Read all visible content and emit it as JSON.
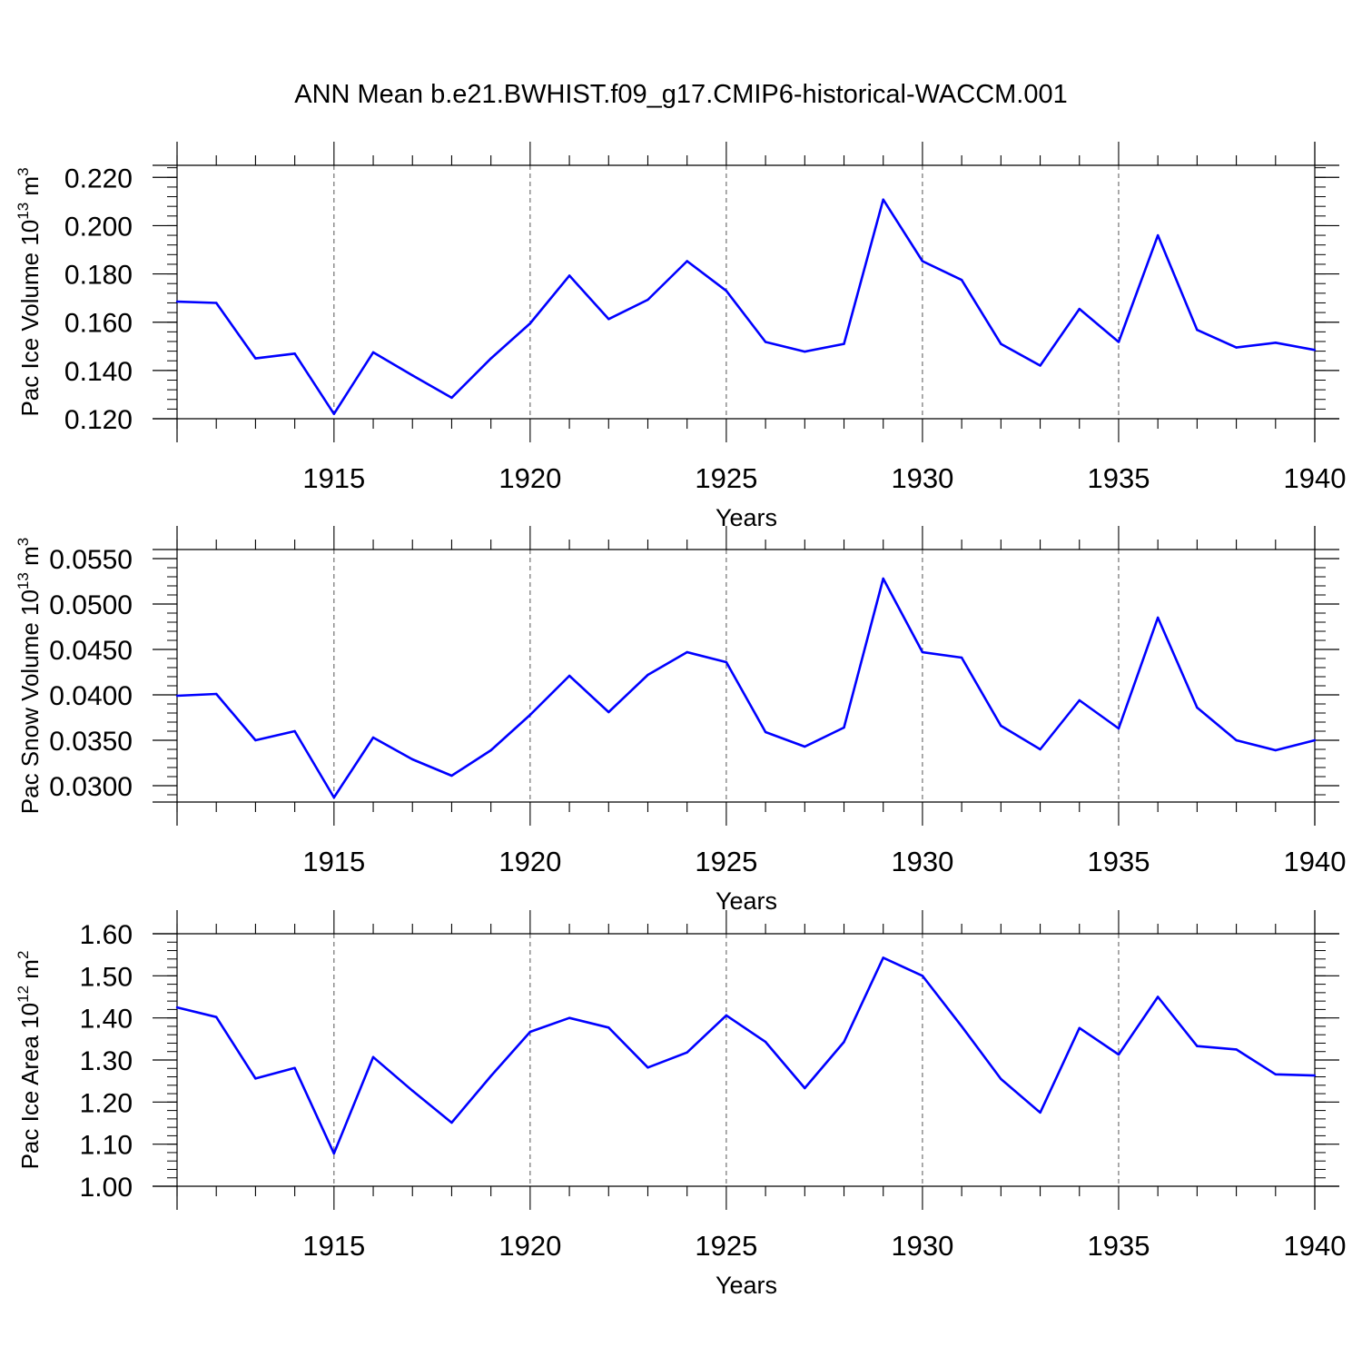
{
  "title": "ANN Mean b.e21.BWHIST.f09_g17.CMIP6-historical-WACCM.001",
  "chart_data": [
    {
      "type": "line",
      "title": "ANN Mean b.e21.BWHIST.f09_g17.CMIP6-historical-WACCM.001",
      "xlabel": "Years",
      "ylabel": "Pac Ice Volume 10",
      "ylabel_exp": "13",
      "ylabel_unit": " m",
      "ylabel_unit_exp": "3",
      "xlim": [
        1911,
        1940
      ],
      "ylim": [
        0.12,
        0.225
      ],
      "x_ticks": [
        1915,
        1920,
        1925,
        1930,
        1935,
        1940
      ],
      "x_tick_labels": [
        "1915",
        "1920",
        "1925",
        "1930",
        "1935",
        "1940"
      ],
      "y_ticks": [
        0.12,
        0.14,
        0.16,
        0.18,
        0.2,
        0.22
      ],
      "y_tick_labels": [
        "0.120",
        "0.140",
        "0.160",
        "0.180",
        "0.200",
        "0.220"
      ],
      "y_minor_step": 0.004,
      "grid": "vertical dashed at major x ticks",
      "line_color": "#0000ff",
      "x": [
        1911,
        1912,
        1913,
        1914,
        1915,
        1916,
        1917,
        1918,
        1919,
        1920,
        1921,
        1922,
        1923,
        1924,
        1925,
        1926,
        1927,
        1928,
        1929,
        1930,
        1931,
        1932,
        1933,
        1934,
        1935,
        1936,
        1937,
        1938,
        1939,
        1940
      ],
      "values": [
        0.1685,
        0.168,
        0.145,
        0.147,
        0.122,
        0.1475,
        0.138,
        0.1287,
        0.145,
        0.1595,
        0.1793,
        0.1613,
        0.1693,
        0.1853,
        0.173,
        0.1518,
        0.1478,
        0.151,
        0.2108,
        0.1853,
        0.1775,
        0.151,
        0.142,
        0.1655,
        0.1518,
        0.196,
        0.1568,
        0.1495,
        0.1515,
        0.1485
      ]
    },
    {
      "type": "line",
      "xlabel": "Years",
      "ylabel": "Pac Snow Volume 10",
      "ylabel_exp": "13",
      "ylabel_unit": " m",
      "ylabel_unit_exp": "3",
      "xlim": [
        1911,
        1940
      ],
      "ylim": [
        0.0282,
        0.056
      ],
      "x_ticks": [
        1915,
        1920,
        1925,
        1930,
        1935,
        1940
      ],
      "x_tick_labels": [
        "1915",
        "1920",
        "1925",
        "1930",
        "1935",
        "1940"
      ],
      "y_ticks": [
        0.03,
        0.035,
        0.04,
        0.045,
        0.05,
        0.055
      ],
      "y_tick_labels": [
        "0.0300",
        "0.0350",
        "0.0400",
        "0.0450",
        "0.0500",
        "0.0550"
      ],
      "y_minor_step": 0.001,
      "grid": "vertical dashed at major x ticks",
      "line_color": "#0000ff",
      "x": [
        1911,
        1912,
        1913,
        1914,
        1915,
        1916,
        1917,
        1918,
        1919,
        1920,
        1921,
        1922,
        1923,
        1924,
        1925,
        1926,
        1927,
        1928,
        1929,
        1930,
        1931,
        1932,
        1933,
        1934,
        1935,
        1936,
        1937,
        1938,
        1939,
        1940
      ],
      "values": [
        0.0399,
        0.0401,
        0.035,
        0.036,
        0.0287,
        0.0353,
        0.0329,
        0.0311,
        0.0339,
        0.0378,
        0.0421,
        0.0381,
        0.0422,
        0.0447,
        0.0436,
        0.0359,
        0.0343,
        0.0364,
        0.0528,
        0.0447,
        0.0441,
        0.0366,
        0.034,
        0.0394,
        0.0363,
        0.0485,
        0.0386,
        0.035,
        0.0339,
        0.035
      ]
    },
    {
      "type": "line",
      "xlabel": "Years",
      "ylabel": "Pac Ice Area 10",
      "ylabel_exp": "12",
      "ylabel_unit": " m",
      "ylabel_unit_exp": "2",
      "xlim": [
        1911,
        1940
      ],
      "ylim": [
        1.0,
        1.6
      ],
      "x_ticks": [
        1915,
        1920,
        1925,
        1930,
        1935,
        1940
      ],
      "x_tick_labels": [
        "1915",
        "1920",
        "1925",
        "1930",
        "1935",
        "1940"
      ],
      "y_ticks": [
        1.0,
        1.1,
        1.2,
        1.3,
        1.4,
        1.5,
        1.6
      ],
      "y_tick_labels": [
        "1.00",
        "1.10",
        "1.20",
        "1.30",
        "1.40",
        "1.50",
        "1.60"
      ],
      "y_minor_step": 0.02,
      "grid": "vertical dashed at major x ticks",
      "line_color": "#0000ff",
      "x": [
        1911,
        1912,
        1913,
        1914,
        1915,
        1916,
        1917,
        1918,
        1919,
        1920,
        1921,
        1922,
        1923,
        1924,
        1925,
        1926,
        1927,
        1928,
        1929,
        1930,
        1931,
        1932,
        1933,
        1934,
        1935,
        1936,
        1937,
        1938,
        1939,
        1940
      ],
      "values": [
        1.425,
        1.402,
        1.256,
        1.281,
        1.078,
        1.307,
        1.227,
        1.151,
        1.262,
        1.367,
        1.4,
        1.377,
        1.282,
        1.318,
        1.406,
        1.343,
        1.233,
        1.343,
        1.543,
        1.5,
        1.38,
        1.255,
        1.175,
        1.376,
        1.313,
        1.45,
        1.333,
        1.325,
        1.266,
        1.263
      ]
    }
  ]
}
